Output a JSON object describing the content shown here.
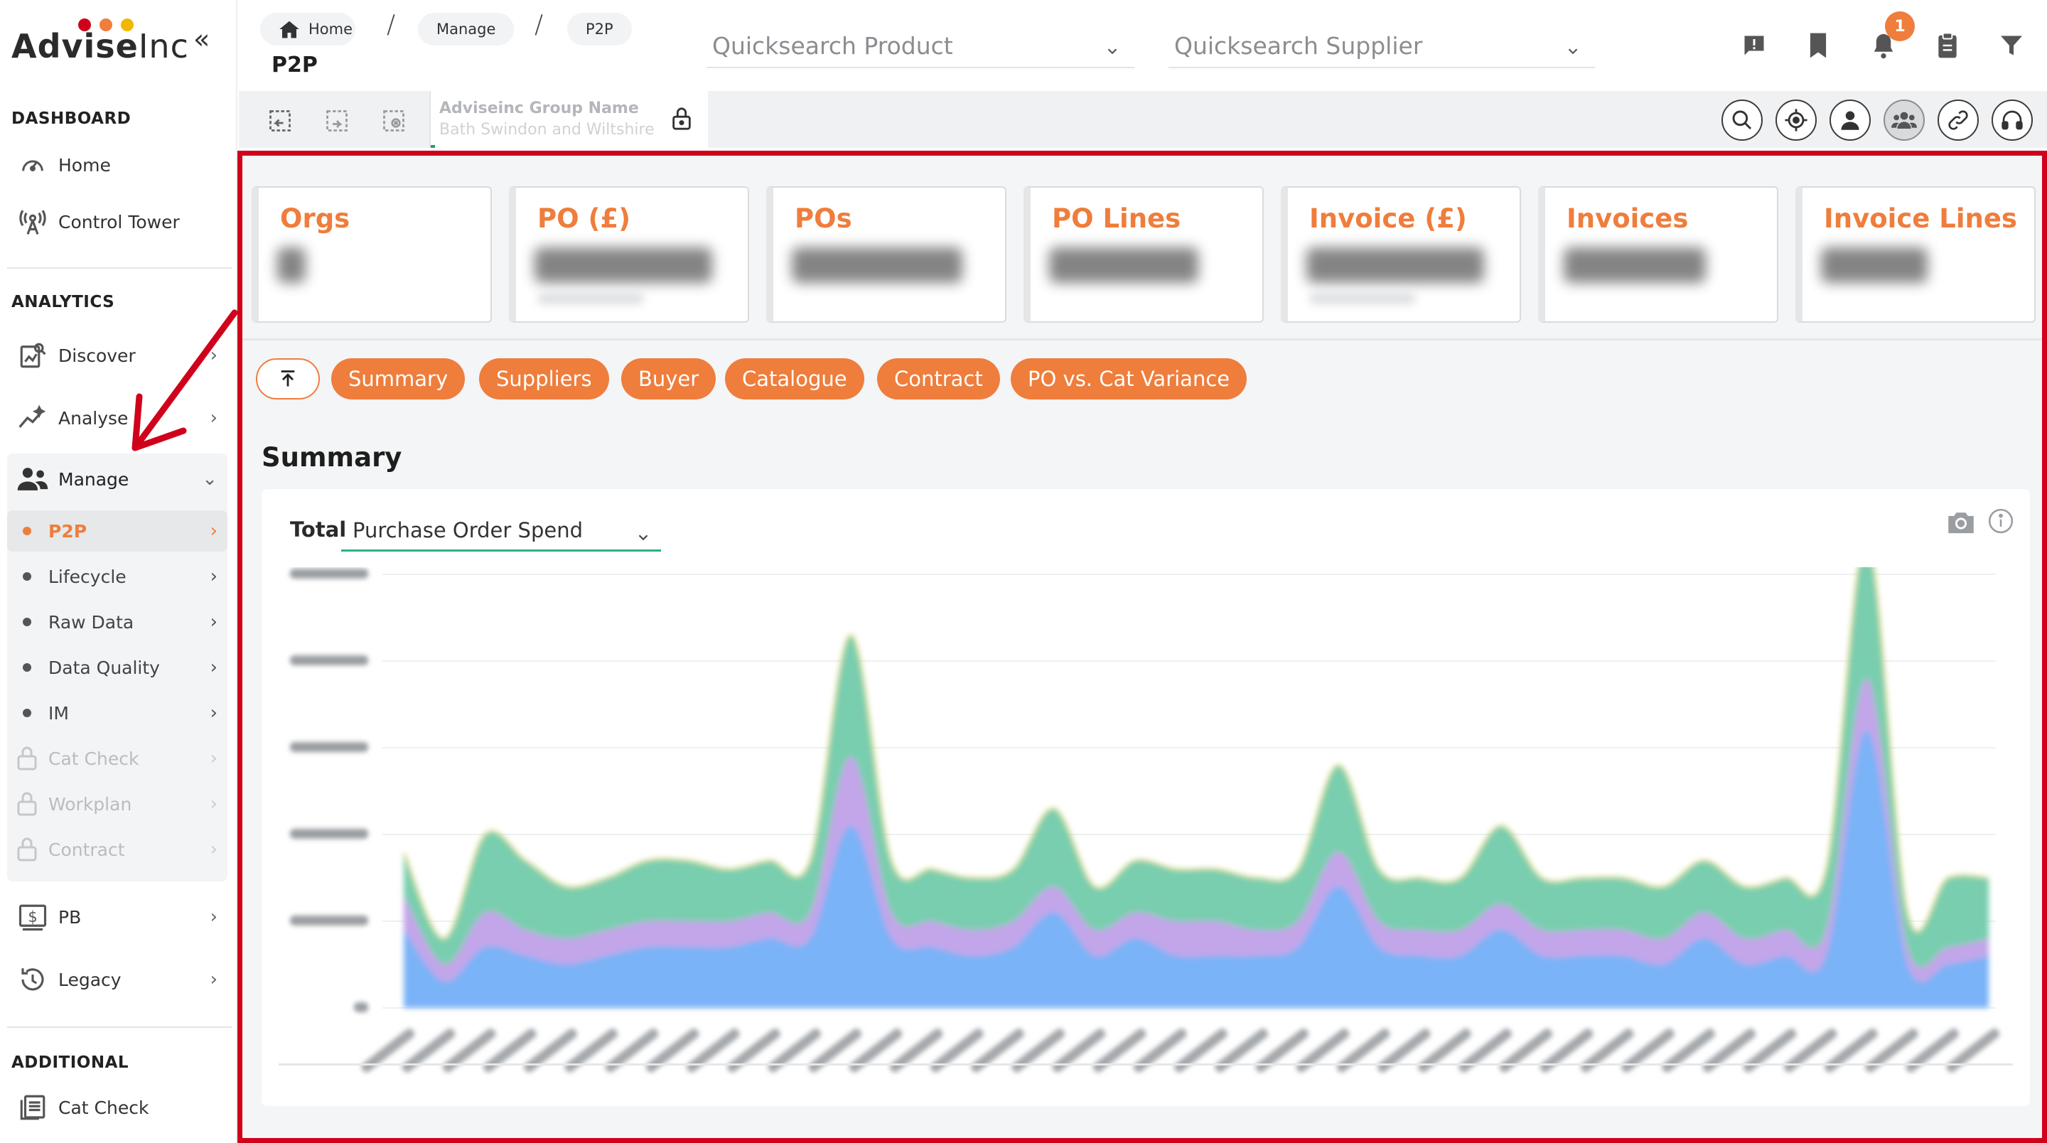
{
  "brand": {
    "name_bold": "Advise",
    "name_light": "Inc",
    "dot_colors": [
      "#d0021b",
      "#ef7d3c",
      "#f2b705"
    ]
  },
  "sidebar": {
    "collapse_glyph": "«",
    "sections": {
      "dashboard": "DASHBOARD",
      "analytics": "ANALYTICS",
      "additional": "ADDITIONAL"
    },
    "dashboard_items": [
      {
        "label": "Home",
        "icon": "speedometer-icon"
      },
      {
        "label": "Control Tower",
        "icon": "broadcast-tower-icon"
      }
    ],
    "analytics_items": [
      {
        "label": "Discover",
        "icon": "discover-icon"
      },
      {
        "label": "Analyse",
        "icon": "trend-icon"
      },
      {
        "label": "Manage",
        "icon": "users-icon"
      }
    ],
    "manage_sub": [
      {
        "label": "P2P",
        "active": true
      },
      {
        "label": "Lifecycle"
      },
      {
        "label": "Raw Data"
      },
      {
        "label": "Data Quality"
      },
      {
        "label": "IM"
      },
      {
        "label": "Cat Check",
        "locked": true
      },
      {
        "label": "Workplan",
        "locked": true
      },
      {
        "label": "Contract",
        "locked": true
      }
    ],
    "other_items": [
      {
        "label": "PB",
        "icon": "pound-box-icon"
      },
      {
        "label": "Legacy",
        "icon": "history-icon"
      }
    ],
    "additional_items": [
      {
        "label": "Cat Check",
        "icon": "list-doc-icon"
      }
    ]
  },
  "topbar": {
    "breadcrumbs": [
      "Home",
      "Manage",
      "P2P"
    ],
    "page_title": "P2P",
    "quicksearch_product": "Quicksearch Product",
    "quicksearch_supplier": "Quicksearch Supplier",
    "notification_count": "1",
    "group_label": "Adviseinc Group Name",
    "group_value": "Bath Swindon and Wiltshire"
  },
  "kpis": [
    {
      "title": "Orgs"
    },
    {
      "title": "PO (£)"
    },
    {
      "title": "POs"
    },
    {
      "title": "PO Lines"
    },
    {
      "title": "Invoice (£)"
    },
    {
      "title": "Invoices"
    },
    {
      "title": "Invoice Lines"
    }
  ],
  "tabs": [
    "Summary",
    "Suppliers",
    "Buyer",
    "Catalogue",
    "Contract",
    "PO vs. Cat Variance"
  ],
  "summary": {
    "title": "Summary",
    "select_label": "Total",
    "select_value": "Purchase Order Spend"
  },
  "colors": {
    "accent": "#ef7d3c",
    "highlight": "#d0021b",
    "underline": "#2eae86"
  },
  "chart_data": {
    "type": "area",
    "title": "",
    "stacked": true,
    "series": [
      {
        "values": [
          9,
          3,
          7,
          6,
          5,
          6,
          7,
          7,
          7,
          8,
          8,
          21,
          8,
          7,
          6,
          7,
          11,
          6,
          8,
          6,
          6,
          6,
          7,
          14,
          7,
          6,
          6,
          9,
          6,
          6,
          6,
          5,
          8,
          5,
          6,
          6,
          32,
          5,
          5,
          6
        ]
      },
      {
        "values": [
          4,
          2,
          4,
          3,
          3,
          3,
          3,
          3,
          3,
          3,
          3,
          8,
          3,
          3,
          3,
          3,
          3,
          3,
          3,
          4,
          4,
          3,
          3,
          4,
          3,
          3,
          3,
          3,
          3,
          3,
          3,
          3,
          3,
          3,
          3,
          3,
          6,
          2,
          2,
          2
        ]
      },
      {
        "values": [
          5,
          3,
          9,
          8,
          6,
          6,
          7,
          7,
          6,
          6,
          6,
          14,
          6,
          6,
          6,
          6,
          9,
          5,
          6,
          6,
          6,
          6,
          6,
          10,
          6,
          6,
          6,
          9,
          6,
          6,
          6,
          6,
          6,
          6,
          6,
          7,
          16,
          4,
          8,
          7
        ]
      }
    ],
    "series_colors": [
      "#74b4f7",
      "#c9a3ef",
      "#6ccaa8"
    ]
  }
}
